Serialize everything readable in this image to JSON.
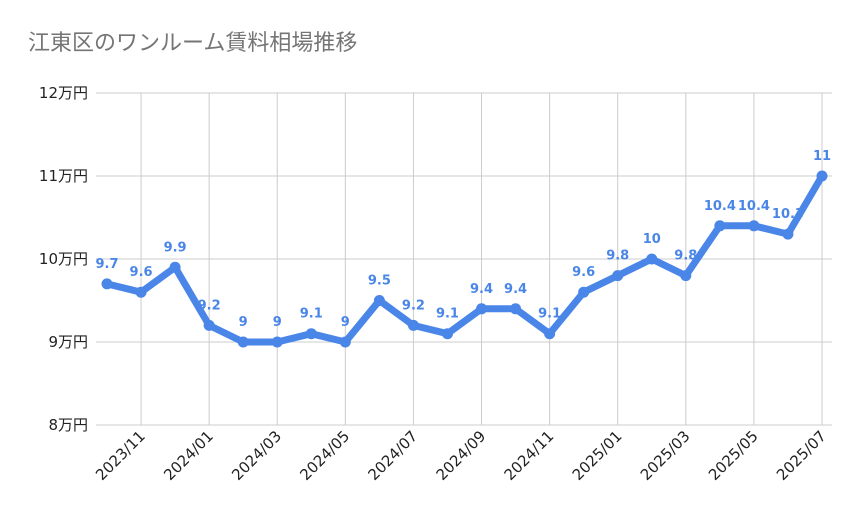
{
  "chart_data": {
    "type": "line",
    "title": "江東区のワンルーム賃料相場推移",
    "xlabel": "",
    "ylabel": "",
    "ylim": [
      8,
      12
    ],
    "y_ticks": [
      {
        "value": 12,
        "label": "12万円"
      },
      {
        "value": 11,
        "label": "11万円"
      },
      {
        "value": 10,
        "label": "10万円"
      },
      {
        "value": 9,
        "label": "9万円"
      },
      {
        "value": 8,
        "label": "8万円"
      }
    ],
    "x": [
      "2023/10",
      "2023/11",
      "2023/12",
      "2024/01",
      "2024/02",
      "2024/03",
      "2024/04",
      "2024/05",
      "2024/06",
      "2024/07",
      "2024/08",
      "2024/09",
      "2024/10",
      "2024/11",
      "2024/12",
      "2025/01",
      "2025/02",
      "2025/03",
      "2025/04",
      "2025/05",
      "2025/06",
      "2025/07"
    ],
    "x_tick_labels": [
      "",
      "2023/11",
      "",
      "2024/01",
      "",
      "2024/03",
      "",
      "2024/05",
      "",
      "2024/07",
      "",
      "2024/09",
      "",
      "2024/11",
      "",
      "2025/01",
      "",
      "2025/03",
      "",
      "2025/05",
      "",
      "2025/07"
    ],
    "series": [
      {
        "values": [
          9.7,
          9.6,
          9.9,
          9.2,
          9,
          9,
          9.1,
          9,
          9.5,
          9.2,
          9.1,
          9.4,
          9.4,
          9.1,
          9.6,
          9.8,
          10,
          9.8,
          10.4,
          10.4,
          10.3,
          11
        ],
        "labels": [
          "9.7",
          "9.6",
          "9.9",
          "9.2",
          "9",
          "9",
          "9.1",
          "9",
          "9.5",
          "9.2",
          "9.1",
          "9.4",
          "9.4",
          "9.1",
          "9.6",
          "9.8",
          "10",
          "9.8",
          "10.4",
          "10.4",
          "10.3",
          "11"
        ]
      }
    ],
    "grid": true,
    "legend": "none",
    "colors": {
      "line": "#4a86e8",
      "grid": "#cccccc",
      "title": "#757575",
      "tick": "#222222"
    }
  }
}
